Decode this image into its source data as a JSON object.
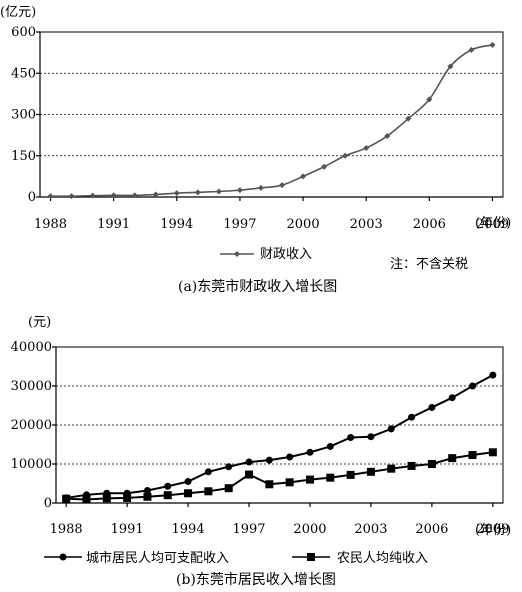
{
  "chart_data": [
    {
      "type": "line",
      "unit_label": "(亿元)",
      "y_ticks": [
        "0",
        "150",
        "300",
        "450",
        "600"
      ],
      "x_ticks": [
        "1988",
        "1991",
        "1994",
        "1997",
        "2000",
        "2003",
        "2006",
        "2009"
      ],
      "x_unit": "(年份)",
      "ylim": [
        0,
        600
      ],
      "xlim": [
        1988,
        2009
      ],
      "grid": true,
      "legend_position": "bottom",
      "series": [
        {
          "name": "财政收入",
          "color": "#555555",
          "marker": "diamond",
          "x": [
            1988,
            1989,
            1990,
            1991,
            1992,
            1993,
            1994,
            1995,
            1996,
            1997,
            1998,
            1999,
            2000,
            2001,
            2002,
            2003,
            2004,
            2005,
            2006,
            2007,
            2008,
            2009
          ],
          "y": [
            3,
            3,
            5,
            6,
            6,
            9,
            14,
            17,
            20,
            25,
            33,
            43,
            75,
            110,
            150,
            178,
            222,
            285,
            355,
            475,
            535,
            553
          ]
        }
      ],
      "note": "注：不含关税",
      "caption": "(a)东莞市财政收入增长图"
    },
    {
      "type": "line",
      "unit_label": "(元)",
      "y_ticks": [
        "0",
        "10000",
        "20000",
        "30000",
        "40000"
      ],
      "x_ticks": [
        "1988",
        "1991",
        "1994",
        "1997",
        "2000",
        "2003",
        "2006",
        "2009"
      ],
      "x_unit": "(年份)",
      "ylim": [
        0,
        40000
      ],
      "xlim": [
        1988,
        2009
      ],
      "grid": true,
      "legend_position": "bottom",
      "series": [
        {
          "name": "城市居民人均可支配收入",
          "color": "#000000",
          "marker": "circle",
          "x": [
            1988,
            1989,
            1990,
            1991,
            1992,
            1993,
            1994,
            1995,
            1996,
            1997,
            1998,
            1999,
            2000,
            2001,
            2002,
            2003,
            2004,
            2005,
            2006,
            2007,
            2008,
            2009
          ],
          "y": [
            1300,
            2100,
            2500,
            2500,
            3200,
            4300,
            5500,
            8000,
            9300,
            10500,
            11000,
            11800,
            13000,
            14500,
            16800,
            17000,
            19000,
            22000,
            24500,
            27000,
            30000,
            32800
          ]
        },
        {
          "name": "农民人均纯收入",
          "color": "#000000",
          "marker": "square",
          "x": [
            1988,
            1989,
            1990,
            1991,
            1992,
            1993,
            1994,
            1995,
            1996,
            1997,
            1998,
            1999,
            2000,
            2001,
            2002,
            2003,
            2004,
            2005,
            2006,
            2007,
            2008,
            2009
          ],
          "y": [
            1100,
            900,
            1200,
            1300,
            1600,
            2000,
            2500,
            3000,
            3800,
            7300,
            4800,
            5300,
            6000,
            6500,
            7200,
            8000,
            8800,
            9500,
            10000,
            11500,
            12300,
            13000
          ]
        }
      ],
      "caption": "(b)东莞市居民收入增长图"
    }
  ]
}
